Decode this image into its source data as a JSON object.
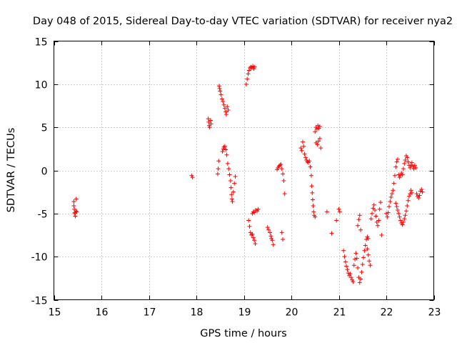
{
  "chart_data": {
    "type": "scatter",
    "title": "Day 048 of 2015, Sidereal Day-to-day VTEC variation (SDTVAR) for receiver nya2",
    "xlabel": "GPS time / hours",
    "ylabel": "SDTVAR / TECUs",
    "xlim": [
      15,
      23
    ],
    "ylim": [
      -15,
      15
    ],
    "xticks": [
      15,
      16,
      17,
      18,
      19,
      20,
      21,
      22,
      23
    ],
    "yticks": [
      -15,
      -10,
      -5,
      0,
      5,
      10,
      15
    ],
    "grid": true,
    "marker": "plus",
    "color": "#ff0000",
    "series": [
      {
        "name": "SDTVAR",
        "points": [
          [
            15.42,
            -3.6
          ],
          [
            15.42,
            -4.1
          ],
          [
            15.43,
            -4.5
          ],
          [
            15.44,
            -4.9
          ],
          [
            15.45,
            -5.3
          ],
          [
            15.46,
            -4.7
          ],
          [
            15.47,
            -3.3
          ],
          [
            15.48,
            -4.8
          ],
          [
            15.44,
            -5.0
          ],
          [
            17.9,
            -0.6
          ],
          [
            17.92,
            -0.8
          ],
          [
            18.25,
            6.0
          ],
          [
            18.26,
            5.6
          ],
          [
            18.27,
            5.2
          ],
          [
            18.28,
            5.0
          ],
          [
            18.3,
            5.8
          ],
          [
            18.31,
            5.4
          ],
          [
            18.45,
            -0.4
          ],
          [
            18.46,
            0.2
          ],
          [
            18.47,
            1.1
          ],
          [
            18.48,
            9.8
          ],
          [
            18.49,
            9.5
          ],
          [
            18.5,
            9.2
          ],
          [
            18.52,
            8.8
          ],
          [
            18.54,
            8.3
          ],
          [
            18.56,
            8.0
          ],
          [
            18.58,
            7.6
          ],
          [
            18.6,
            7.2
          ],
          [
            18.62,
            6.8
          ],
          [
            18.63,
            6.5
          ],
          [
            18.65,
            7.4
          ],
          [
            18.67,
            7.0
          ],
          [
            18.55,
            2.2
          ],
          [
            18.57,
            2.5
          ],
          [
            18.58,
            2.7
          ],
          [
            18.6,
            2.8
          ],
          [
            18.62,
            2.4
          ],
          [
            18.64,
            1.8
          ],
          [
            18.66,
            0.8
          ],
          [
            18.68,
            0.2
          ],
          [
            18.7,
            -0.5
          ],
          [
            18.72,
            -1.2
          ],
          [
            18.73,
            -2.0
          ],
          [
            18.74,
            -2.8
          ],
          [
            18.75,
            -3.3
          ],
          [
            18.76,
            -3.6
          ],
          [
            18.78,
            -2.5
          ],
          [
            18.8,
            -1.5
          ],
          [
            18.82,
            -0.7
          ],
          [
            19.05,
            10.0
          ],
          [
            19.07,
            10.6
          ],
          [
            19.09,
            11.2
          ],
          [
            19.11,
            11.6
          ],
          [
            19.13,
            11.9
          ],
          [
            19.15,
            12.0
          ],
          [
            19.17,
            11.9
          ],
          [
            19.19,
            12.1
          ],
          [
            19.21,
            11.8
          ],
          [
            19.23,
            12.0
          ],
          [
            19.1,
            -5.8
          ],
          [
            19.12,
            -6.5
          ],
          [
            19.14,
            -7.2
          ],
          [
            19.16,
            -7.5
          ],
          [
            19.18,
            -7.4
          ],
          [
            19.2,
            -7.8
          ],
          [
            19.22,
            -8.1
          ],
          [
            19.24,
            -8.5
          ],
          [
            19.18,
            -5.0
          ],
          [
            19.2,
            -4.8
          ],
          [
            19.22,
            -4.9
          ],
          [
            19.25,
            -4.6
          ],
          [
            19.28,
            -4.7
          ],
          [
            19.3,
            -4.5
          ],
          [
            19.5,
            -6.6
          ],
          [
            19.52,
            -6.9
          ],
          [
            19.55,
            -7.2
          ],
          [
            19.57,
            -7.6
          ],
          [
            19.6,
            -8.1
          ],
          [
            19.62,
            -8.6
          ],
          [
            19.58,
            -7.9
          ],
          [
            19.7,
            0.1
          ],
          [
            19.72,
            0.3
          ],
          [
            19.74,
            0.5
          ],
          [
            19.76,
            0.6
          ],
          [
            19.78,
            0.7
          ],
          [
            19.8,
            0.2
          ],
          [
            19.82,
            -0.4
          ],
          [
            19.84,
            -1.2
          ],
          [
            19.86,
            -2.7
          ],
          [
            19.8,
            -7.2
          ],
          [
            19.82,
            -8.0
          ],
          [
            20.2,
            2.6
          ],
          [
            20.22,
            2.3
          ],
          [
            20.24,
            3.3
          ],
          [
            20.26,
            2.8
          ],
          [
            20.28,
            1.9
          ],
          [
            20.3,
            1.5
          ],
          [
            20.32,
            1.2
          ],
          [
            20.34,
            1.0
          ],
          [
            20.36,
            0.9
          ],
          [
            20.38,
            1.1
          ],
          [
            20.4,
            0.4
          ],
          [
            20.42,
            -0.6
          ],
          [
            20.43,
            -1.8
          ],
          [
            20.44,
            -2.6
          ],
          [
            20.45,
            -3.4
          ],
          [
            20.46,
            -4.1
          ],
          [
            20.47,
            -4.8
          ],
          [
            20.48,
            -5.2
          ],
          [
            20.5,
            -5.4
          ],
          [
            20.5,
            4.5
          ],
          [
            20.52,
            5.0
          ],
          [
            20.54,
            4.8
          ],
          [
            20.56,
            5.2
          ],
          [
            20.58,
            4.9
          ],
          [
            20.6,
            5.1
          ],
          [
            20.52,
            3.2
          ],
          [
            20.55,
            3.0
          ],
          [
            20.57,
            3.4
          ],
          [
            20.6,
            3.7
          ],
          [
            20.62,
            2.6
          ],
          [
            20.75,
            -4.8
          ],
          [
            20.85,
            -7.3
          ],
          [
            20.95,
            -5.8
          ],
          [
            21.0,
            -4.5
          ],
          [
            21.02,
            -4.8
          ],
          [
            21.1,
            -9.3
          ],
          [
            21.12,
            -10.0
          ],
          [
            21.14,
            -10.6
          ],
          [
            21.16,
            -11.1
          ],
          [
            21.18,
            -11.5
          ],
          [
            21.2,
            -11.9
          ],
          [
            21.22,
            -12.2
          ],
          [
            21.24,
            -12.0
          ],
          [
            21.26,
            -12.4
          ],
          [
            21.28,
            -12.7
          ],
          [
            21.3,
            -12.9
          ],
          [
            21.32,
            -11.0
          ],
          [
            21.34,
            -10.3
          ],
          [
            21.36,
            -9.6
          ],
          [
            21.38,
            -10.2
          ],
          [
            21.4,
            -11.3
          ],
          [
            21.42,
            -12.4
          ],
          [
            21.44,
            -13.0
          ],
          [
            21.46,
            -12.6
          ],
          [
            21.48,
            -11.8
          ],
          [
            21.5,
            -10.9
          ],
          [
            21.52,
            -10.1
          ],
          [
            21.54,
            -9.3
          ],
          [
            21.56,
            -8.7
          ],
          [
            21.58,
            -8.0
          ],
          [
            21.6,
            -7.7
          ],
          [
            21.62,
            -7.9
          ],
          [
            21.4,
            -6.4
          ],
          [
            21.42,
            -5.7
          ],
          [
            21.44,
            -5.2
          ],
          [
            21.46,
            -6.9
          ],
          [
            21.6,
            -9.1
          ],
          [
            21.62,
            -9.8
          ],
          [
            21.64,
            -10.5
          ],
          [
            21.66,
            -11.0
          ],
          [
            21.68,
            -5.6
          ],
          [
            21.7,
            -5.0
          ],
          [
            21.72,
            -4.4
          ],
          [
            21.74,
            -4.0
          ],
          [
            21.76,
            -4.6
          ],
          [
            21.78,
            -5.3
          ],
          [
            21.8,
            -6.0
          ],
          [
            21.82,
            -6.4
          ],
          [
            21.84,
            -5.8
          ],
          [
            21.86,
            -4.5
          ],
          [
            21.88,
            -3.7
          ],
          [
            21.9,
            -7.5
          ],
          [
            22.0,
            -5.0
          ],
          [
            22.02,
            -5.4
          ],
          [
            22.04,
            -4.9
          ],
          [
            22.06,
            -4.2
          ],
          [
            22.08,
            -3.6
          ],
          [
            22.1,
            -3.1
          ],
          [
            22.12,
            -2.7
          ],
          [
            22.14,
            -2.3
          ],
          [
            22.16,
            -1.5
          ],
          [
            22.18,
            -0.6
          ],
          [
            22.2,
            0.4
          ],
          [
            22.22,
            1.0
          ],
          [
            22.24,
            1.3
          ],
          [
            22.26,
            -0.5
          ],
          [
            22.28,
            -0.8
          ],
          [
            22.3,
            -0.6
          ],
          [
            22.32,
            -0.3
          ],
          [
            22.34,
            -0.5
          ],
          [
            22.36,
            0.2
          ],
          [
            22.38,
            0.8
          ],
          [
            22.4,
            1.2
          ],
          [
            22.42,
            1.7
          ],
          [
            22.44,
            1.5
          ],
          [
            22.46,
            1.0
          ],
          [
            22.48,
            0.6
          ],
          [
            22.2,
            -3.8
          ],
          [
            22.22,
            -4.2
          ],
          [
            22.24,
            -4.6
          ],
          [
            22.26,
            -5.0
          ],
          [
            22.28,
            -5.4
          ],
          [
            22.3,
            -5.8
          ],
          [
            22.32,
            -6.1
          ],
          [
            22.34,
            -6.3
          ],
          [
            22.36,
            -6.0
          ],
          [
            22.38,
            -5.6
          ],
          [
            22.4,
            -5.2
          ],
          [
            22.42,
            -4.7
          ],
          [
            22.44,
            -4.1
          ],
          [
            22.46,
            -3.5
          ],
          [
            22.48,
            -3.0
          ],
          [
            22.5,
            -2.7
          ],
          [
            22.52,
            -2.3
          ],
          [
            22.54,
            -2.6
          ],
          [
            22.5,
            0.3
          ],
          [
            22.52,
            0.6
          ],
          [
            22.54,
            0.9
          ],
          [
            22.56,
            0.5
          ],
          [
            22.58,
            0.2
          ],
          [
            22.6,
            0.6
          ],
          [
            22.62,
            0.3
          ],
          [
            22.64,
            -2.7
          ],
          [
            22.66,
            -3.0
          ],
          [
            22.68,
            -3.2
          ],
          [
            22.7,
            -2.9
          ],
          [
            22.72,
            -2.4
          ],
          [
            22.74,
            -2.2
          ],
          [
            22.76,
            -2.5
          ]
        ]
      }
    ]
  }
}
